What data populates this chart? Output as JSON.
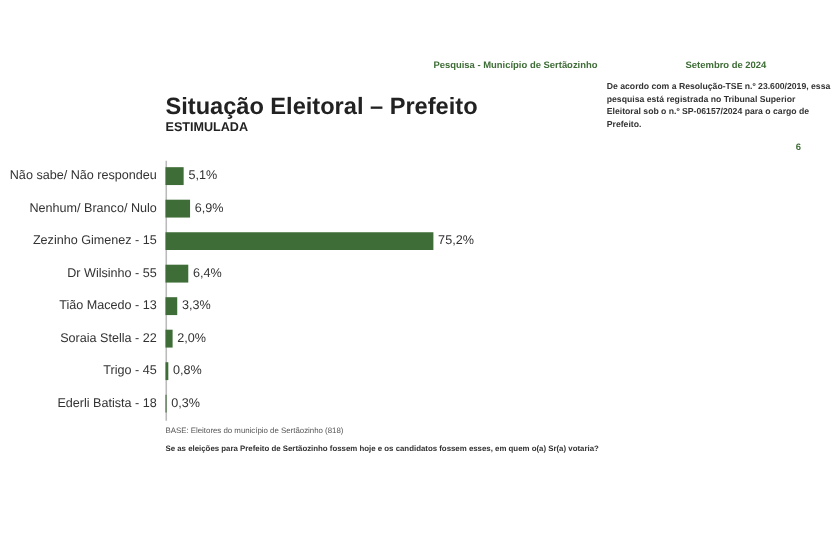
{
  "chart_data": {
    "type": "bar",
    "orientation": "horizontal",
    "title": "Situação Eleitoral – Prefeito",
    "subtitle": "ESTIMULADA",
    "categories": [
      "Não sabe/ Não respondeu",
      "Nenhum/ Branco/ Nulo",
      "Zezinho Gimenez - 15",
      "Dr Wilsinho - 55",
      "Tião Macedo - 13",
      "Soraia Stella - 22",
      "Trigo - 45",
      "Ederli Batista - 18"
    ],
    "values": [
      5.1,
      6.9,
      75.2,
      6.4,
      3.3,
      2.0,
      0.8,
      0.3
    ],
    "value_labels": [
      "5,1%",
      "6,9%",
      "75,2%",
      "6,4%",
      "3,3%",
      "2,0%",
      "0,8%",
      "0,3%"
    ],
    "color": "#3f6d37",
    "annotations": [
      "Pesquisa - Município de Sertãozinho",
      "Setembro de 2024",
      "De acordo com a Resolução-TSE n.º 23.600/2019, essa pesquisa está registrada no Tribunal Superior Eleitoral sob o n.º SP-06157/2024 para o cargo de Prefeito.",
      "6",
      "BASE: Eleitores do município de Sertãozinho (818)",
      "Se as eleições para Prefeito de Sertãozinho fossem hoje e os candidatos fossem esses, em quem o(a) Sr(a) votaria?"
    ]
  }
}
